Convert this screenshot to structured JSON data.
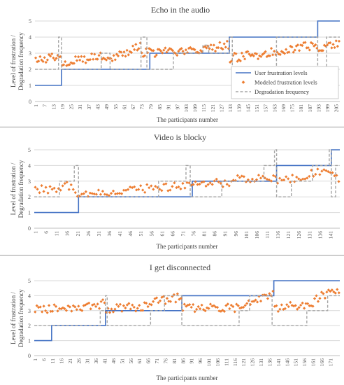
{
  "chart_data": [
    {
      "type": "line",
      "title": "Echo in the audio",
      "xlabel": "The participants number",
      "ylabel_lines": [
        "Level of frustration /",
        "Degradation frequency"
      ],
      "ylim": [
        0,
        5
      ],
      "yticks": [
        "0",
        "1",
        "2",
        "3",
        "4",
        "5"
      ],
      "n": 207,
      "xticks": [
        "1",
        "7",
        "13",
        "19",
        "25",
        "31",
        "37",
        "43",
        "49",
        "55",
        "61",
        "67",
        "73",
        "79",
        "85",
        "91",
        "97",
        "103",
        "109",
        "115",
        "121",
        "127",
        "133",
        "139",
        "145",
        "151",
        "157",
        "163",
        "169",
        "175",
        "181",
        "187",
        "193",
        "199",
        "205"
      ],
      "grid": true,
      "legend_position": "bottom-right",
      "series": [
        {
          "name": "User frustration levels",
          "role": "user",
          "color": "#4472c4",
          "style": "solid",
          "steps": [
            [
              1,
              1
            ],
            [
              19,
              2
            ],
            [
              79,
              3
            ],
            [
              133,
              4
            ],
            [
              193,
              5
            ]
          ]
        },
        {
          "name": "Modeled frustration levels",
          "role": "model",
          "color": "#ed7d31",
          "style": "diamond",
          "segments": [
            [
              1,
              2.5
            ],
            [
              18,
              2.9
            ],
            [
              19,
              2.4
            ],
            [
              48,
              2.9
            ],
            [
              49,
              2.6
            ],
            [
              72,
              3.4
            ],
            [
              73,
              3.0
            ],
            [
              96,
              3.1
            ],
            [
              97,
              3.0
            ],
            [
              132,
              3.5
            ],
            [
              133,
              2.7
            ],
            [
              160,
              3.0
            ],
            [
              161,
              3.1
            ],
            [
              192,
              3.5
            ],
            [
              193,
              3.3
            ],
            [
              207,
              3.6
            ]
          ]
        },
        {
          "name": "Degradation frequency",
          "role": "freq",
          "color": "#a5a5a5",
          "style": "dashed",
          "steps": [
            [
              1,
              2
            ],
            [
              17,
              4
            ],
            [
              19,
              2
            ],
            [
              46,
              3
            ],
            [
              52,
              2
            ],
            [
              73,
              4
            ],
            [
              77,
              2
            ],
            [
              95,
              3
            ],
            [
              115,
              3.5
            ],
            [
              119,
              3
            ],
            [
              133,
              4
            ],
            [
              135,
              2
            ],
            [
              165,
              4
            ],
            [
              193,
              2
            ],
            [
              199,
              4
            ]
          ]
        }
      ]
    },
    {
      "type": "line",
      "title": "Video is blocky",
      "xlabel": "The participants number",
      "ylabel_lines": [
        "Level of frustration /",
        "Degradation frequency"
      ],
      "ylim": [
        0,
        5
      ],
      "yticks": [
        "0",
        "1",
        "2",
        "3",
        "4",
        "5"
      ],
      "n": 145,
      "xticks": [
        "1",
        "6",
        "11",
        "16",
        "21",
        "26",
        "31",
        "36",
        "41",
        "46",
        "51",
        "56",
        "61",
        "66",
        "71",
        "76",
        "81",
        "86",
        "91",
        "96",
        "101",
        "106",
        "111",
        "116",
        "121",
        "126",
        "131",
        "136",
        "141"
      ],
      "grid": true,
      "series": [
        {
          "name": "User frustration levels",
          "role": "user",
          "color": "#4472c4",
          "style": "solid",
          "steps": [
            [
              1,
              1
            ],
            [
              22,
              2
            ],
            [
              76,
              3
            ],
            [
              116,
              4
            ],
            [
              142,
              5
            ]
          ]
        },
        {
          "name": "Modeled frustration levels",
          "role": "model",
          "color": "#ed7d31",
          "style": "diamond",
          "segments": [
            [
              1,
              2.4
            ],
            [
              17,
              2.7
            ],
            [
              22,
              2.1
            ],
            [
              58,
              2.6
            ],
            [
              60,
              2.5
            ],
            [
              75,
              2.9
            ],
            [
              76,
              2.7
            ],
            [
              96,
              3.0
            ],
            [
              97,
              3.1
            ],
            [
              115,
              3.3
            ],
            [
              116,
              2.9
            ],
            [
              141,
              3.8
            ],
            [
              142,
              3.3
            ],
            [
              145,
              3.0
            ]
          ]
        },
        {
          "name": "Degradation frequency",
          "role": "freq",
          "color": "#a5a5a5",
          "style": "dashed",
          "steps": [
            [
              1,
              2
            ],
            [
              13,
              3
            ],
            [
              20,
              4
            ],
            [
              22,
              2
            ],
            [
              60,
              3
            ],
            [
              73,
              4
            ],
            [
              75,
              2
            ],
            [
              90,
              3
            ],
            [
              110,
              4
            ],
            [
              115,
              5
            ],
            [
              116,
              2
            ],
            [
              123,
              3
            ],
            [
              133,
              4
            ],
            [
              141,
              5
            ],
            [
              142,
              2
            ],
            [
              144,
              4
            ]
          ]
        }
      ]
    },
    {
      "type": "line",
      "title": "I get disconnected",
      "xlabel": "The participants number",
      "ylabel_lines": [
        "Level of frustration /",
        "Degradation frequency"
      ],
      "ylim": [
        0,
        5
      ],
      "yticks": [
        "0",
        "1",
        "2",
        "3",
        "4",
        "5"
      ],
      "n": 176,
      "xticks": [
        "1",
        "6",
        "11",
        "16",
        "21",
        "26",
        "31",
        "36",
        "41",
        "46",
        "51",
        "56",
        "61",
        "66",
        "71",
        "76",
        "81",
        "86",
        "91",
        "96",
        "101",
        "106",
        "111",
        "116",
        "121",
        "126",
        "131",
        "136",
        "141",
        "146",
        "151",
        "156",
        "161",
        "166",
        "171"
      ],
      "grid": true,
      "series": [
        {
          "name": "User frustration levels",
          "role": "user",
          "color": "#4472c4",
          "style": "solid",
          "steps": [
            [
              1,
              1
            ],
            [
              11,
              2
            ],
            [
              42,
              3
            ],
            [
              86,
              4
            ],
            [
              139,
              5
            ]
          ]
        },
        {
          "name": "Modeled frustration levels",
          "role": "model",
          "color": "#ed7d31",
          "style": "diamond",
          "segments": [
            [
              1,
              3.1
            ],
            [
              38,
              3.3
            ],
            [
              40,
              3.9
            ],
            [
              42,
              3.1
            ],
            [
              66,
              3.3
            ],
            [
              70,
              3.6
            ],
            [
              85,
              3.9
            ],
            [
              86,
              3.2
            ],
            [
              120,
              3.2
            ],
            [
              121,
              3.4
            ],
            [
              138,
              4.2
            ],
            [
              139,
              3.2
            ],
            [
              160,
              3.4
            ],
            [
              165,
              4.0
            ],
            [
              176,
              4.3
            ]
          ]
        },
        {
          "name": "Degradation frequency",
          "role": "freq",
          "color": "#a5a5a5",
          "style": "dashed",
          "steps": [
            [
              1,
              2
            ],
            [
              39,
              3
            ],
            [
              42,
              4
            ],
            [
              43,
              2
            ],
            [
              68,
              3
            ],
            [
              76,
              4
            ],
            [
              86,
              2
            ],
            [
              119,
              3
            ],
            [
              125,
              4
            ],
            [
              138,
              2
            ],
            [
              158,
              3
            ],
            [
              170,
              4
            ]
          ]
        }
      ]
    }
  ]
}
